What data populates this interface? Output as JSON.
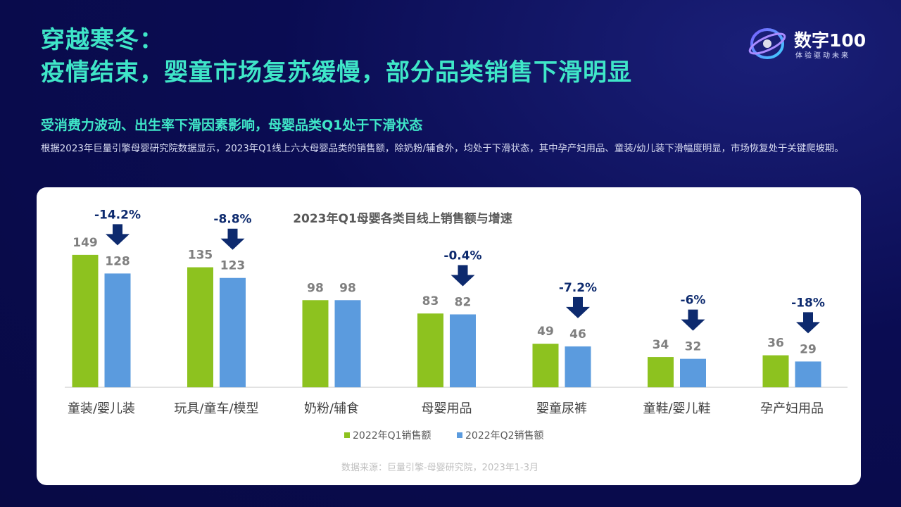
{
  "header": {
    "title_line1": "穿越寒冬：",
    "title_line2": "疫情结束，婴童市场复苏缓慢，部分品类销售下滑明显",
    "logo_text": "数字100",
    "logo_sub": "体验驱动未来"
  },
  "subtitle": "受消费力波动、出生率下滑因素影响，母婴品类Q1处于下滑状态",
  "description": "根据2023年巨量引擎母婴研究院数据显示，2023年Q1线上六大母婴品类的销售额，除奶粉/辅食外，均处于下滑状态，其中孕产妇用品、童装/幼儿装下滑幅度明显，市场恢复处于关键爬坡期。",
  "chart_data": {
    "type": "bar",
    "title": "2023年Q1母婴各类目线上销售额与增速",
    "categories": [
      "童装/婴儿装",
      "玩具/童车/模型",
      "奶粉/辅食",
      "母婴用品",
      "婴童尿裤",
      "童鞋/婴儿鞋",
      "孕产妇用品"
    ],
    "series": [
      {
        "name": "2022年Q1销售额",
        "values": [
          149,
          135,
          98,
          83,
          49,
          34,
          36
        ],
        "color": "#8dc21f"
      },
      {
        "name": "2022年Q2销售额",
        "values": [
          128,
          123,
          98,
          82,
          46,
          32,
          29
        ],
        "color": "#5b9bde"
      }
    ],
    "growth": [
      "-14.2%",
      "-8.8%",
      null,
      "-0.4%",
      "-7.2%",
      "-6%",
      "-18%"
    ],
    "ylim": [
      0,
      160
    ],
    "legend_position": "bottom",
    "grid": false,
    "source": "数据来源：巨量引擎-母婴研究院，2023年1-3月",
    "colors": {
      "arrow": "#0d2a6e",
      "value_label": "#7f7f7f",
      "axis": "#d9d9d9",
      "category_label": "#404040"
    }
  }
}
